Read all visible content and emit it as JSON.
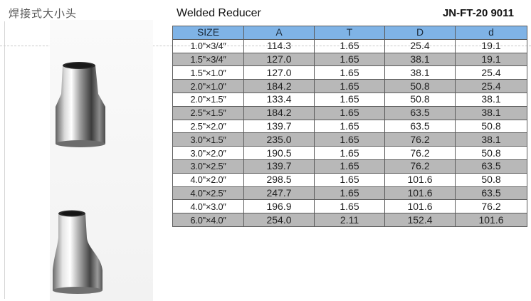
{
  "header": {
    "cn_title": "焊接式大小头",
    "product_title": "Welded Reducer",
    "code": "JN-FT-20 9011"
  },
  "table": {
    "columns": [
      "SIZE",
      "A",
      "T",
      "D",
      "d"
    ],
    "rows": [
      [
        "1.0\"×3/4″",
        "114.3",
        "1.65",
        "25.4",
        "19.1"
      ],
      [
        "1.5\"×3/4″",
        "127.0",
        "1.65",
        "38.1",
        "19.1"
      ],
      [
        "1.5\"×1.0″",
        "127.0",
        "1.65",
        "38.1",
        "25.4"
      ],
      [
        "2.0\"×1.0\"",
        "184.2",
        "1.65",
        "50.8",
        "25.4"
      ],
      [
        "2.0\"×1.5″",
        "133.4",
        "1.65",
        "50.8",
        "38.1"
      ],
      [
        "2.5\"×1.5″",
        "184.2",
        "1.65",
        "63.5",
        "38.1"
      ],
      [
        "2.5\"×2.0″",
        "139.7",
        "1.65",
        "63.5",
        "50.8"
      ],
      [
        "3.0\"×1.5″",
        "235.0",
        "1.65",
        "76.2",
        "38.1"
      ],
      [
        "3.0\"×2.0″",
        "190.5",
        "1.65",
        "76.2",
        "50.8"
      ],
      [
        "3.0\"×2.5″",
        "139.7",
        "1.65",
        "76.2",
        "63.5"
      ],
      [
        "4.0\"×2.0″",
        "298.5",
        "1.65",
        "101.6",
        "50.8"
      ],
      [
        "4.0\"×2.5″",
        "247.7",
        "1.65",
        "101.6",
        "63.5"
      ],
      [
        "4.0\"×3.0″",
        "196.9",
        "1.65",
        "101.6",
        "76.2"
      ],
      [
        "6.0\"×4.0″",
        "254.0",
        "2.11",
        "152.4",
        "101.6"
      ]
    ]
  },
  "colors": {
    "header_bg": "#7fb3e6",
    "alt_row_bg": "#b8b8b8",
    "border": "#5a5a5a"
  }
}
